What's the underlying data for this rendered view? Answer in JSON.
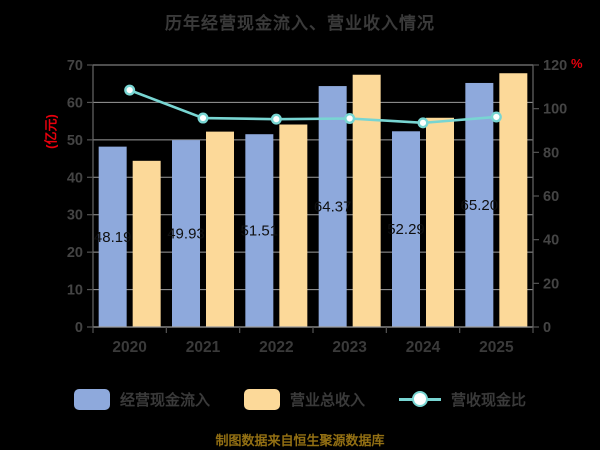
{
  "title": "历年经营现金流入、营业收入情况",
  "caption": "制图数据来自恒生聚源数据库",
  "colors": {
    "background": "#000000",
    "title_text": "#3a3a3a",
    "tick_text": "#444444",
    "axis_line": "#666666",
    "tick_mark": "#555555",
    "gridline": "#9c9c9c",
    "bar_label": "#101010",
    "axis_name_red": "#e8000d",
    "caption_gold": "#926f13",
    "cash_bar_blue": "#8EA9DC",
    "revenue_bar_orange": "#FCD999",
    "ratio_line_teal": "#78D5D2"
  },
  "chart_data": {
    "type": "bar",
    "subtype": "grouped bars with secondary-axis line",
    "title": "历年经营现金流入、营业收入情况",
    "categories": [
      "2020",
      "2021",
      "2022",
      "2023",
      "2024",
      "2025"
    ],
    "series": [
      {
        "name": "经营现金流入",
        "type": "bar",
        "axis": "left",
        "color": "#8EA9DC",
        "values": [
          48.19,
          49.93,
          51.51,
          64.37,
          52.29,
          65.2
        ],
        "data_labels": [
          "48.19",
          "49.93",
          "51.51",
          "64.37",
          "52.29",
          "65.20"
        ]
      },
      {
        "name": "营业总收入",
        "type": "bar",
        "axis": "left",
        "color": "#FCD999",
        "values": [
          44.4,
          52.2,
          54.1,
          67.4,
          55.9,
          67.8
        ]
      },
      {
        "name": "营收现金比",
        "type": "line",
        "axis": "right",
        "color": "#78D5D2",
        "values": [
          108.5,
          95.7,
          95.2,
          95.5,
          93.5,
          96.2
        ]
      }
    ],
    "left_axis": {
      "name": "(亿元)",
      "min": 0,
      "max": 70,
      "step": 10,
      "ticks": [
        0,
        10,
        20,
        30,
        40,
        50,
        60,
        70
      ]
    },
    "right_axis": {
      "name": "%",
      "min": 0,
      "max": 120,
      "step": 20,
      "ticks": [
        0,
        20,
        40,
        60,
        80,
        100,
        120
      ]
    },
    "grid": true,
    "legend_position": "bottom"
  },
  "legend": {
    "items": [
      {
        "label": "经营现金流入",
        "swatch": "bar",
        "color": "#8EA9DC"
      },
      {
        "label": "营业总收入",
        "swatch": "bar",
        "color": "#FCD999"
      },
      {
        "label": "营收现金比",
        "swatch": "line",
        "color": "#78D5D2"
      }
    ]
  }
}
